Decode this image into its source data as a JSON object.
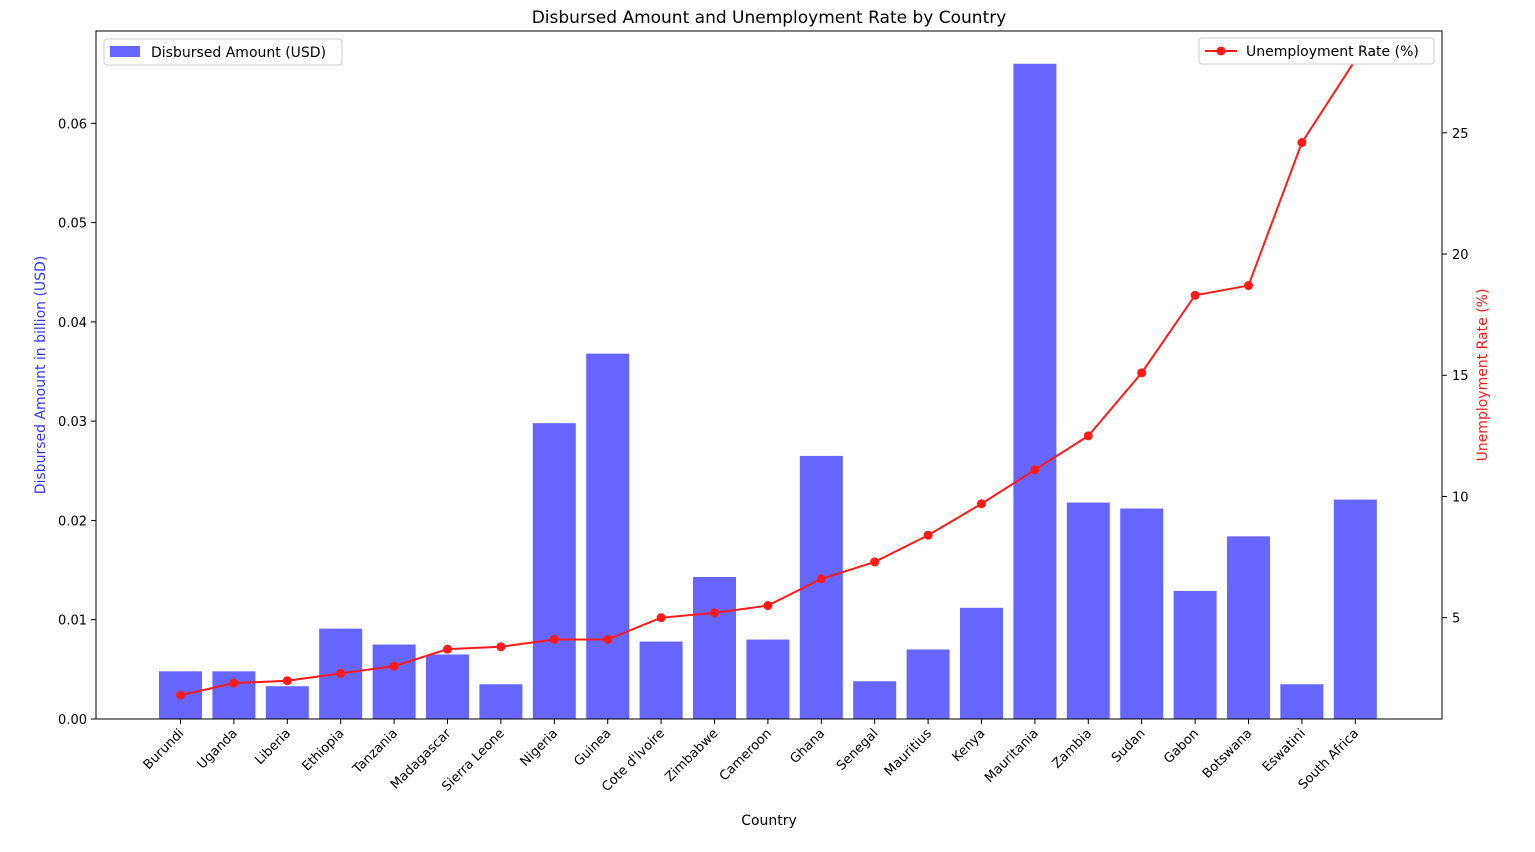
{
  "chart_data": {
    "type": "bar",
    "title": "Disbursed Amount and Unemployment Rate by Country",
    "xlabel": "Country",
    "ylabel": "Disbursed Amount in billion (USD)",
    "y2label": "Unemployment Rate (%)",
    "categories": [
      "Burundi",
      "Uganda",
      "Liberia",
      "Ethiopia",
      "Tanzania",
      "Madagascar",
      "Sierra Leone",
      "Nigeria",
      "Guinea",
      "Cote d'Ivoire",
      "Zimbabwe",
      "Cameroon",
      "Ghana",
      "Senegal",
      "Mauritius",
      "Kenya",
      "Mauritania",
      "Zambia",
      "Sudan",
      "Gabon",
      "Botswana",
      "Eswatini",
      "South Africa"
    ],
    "ylim": [
      0,
      0.0693
    ],
    "y2lim": [
      0.82,
      29.2
    ],
    "yticks": [
      0.0,
      0.01,
      0.02,
      0.03,
      0.04,
      0.05,
      0.06
    ],
    "ytick_labels": [
      "0.00",
      "0.01",
      "0.02",
      "0.03",
      "0.04",
      "0.05",
      "0.06"
    ],
    "y2ticks": [
      5,
      10,
      15,
      20,
      25
    ],
    "y2tick_labels": [
      "5",
      "10",
      "15",
      "20",
      "25"
    ],
    "grid": false,
    "series": [
      {
        "name": "Disbursed Amount (USD)",
        "type": "bar",
        "axis": "left",
        "color": "#6666ff",
        "legend_position": "upper-left",
        "values": [
          0.0048,
          0.0048,
          0.0033,
          0.0091,
          0.0075,
          0.0065,
          0.0035,
          0.0298,
          0.0368,
          0.0078,
          0.0143,
          0.008,
          0.0265,
          0.0038,
          0.007,
          0.0112,
          0.066,
          0.0218,
          0.0212,
          0.0129,
          0.0184,
          0.0035,
          0.0221
        ]
      },
      {
        "name": "Unemployment Rate (%)",
        "type": "line",
        "axis": "right",
        "color": "#ff1a1a",
        "marker": "circle",
        "legend_position": "upper-right",
        "values": [
          1.8,
          2.3,
          2.4,
          2.7,
          3.0,
          3.7,
          3.8,
          4.1,
          4.1,
          5.0,
          5.2,
          5.5,
          6.6,
          7.3,
          8.4,
          9.7,
          11.1,
          12.5,
          15.1,
          18.3,
          18.7,
          24.6,
          28.0
        ]
      }
    ]
  }
}
